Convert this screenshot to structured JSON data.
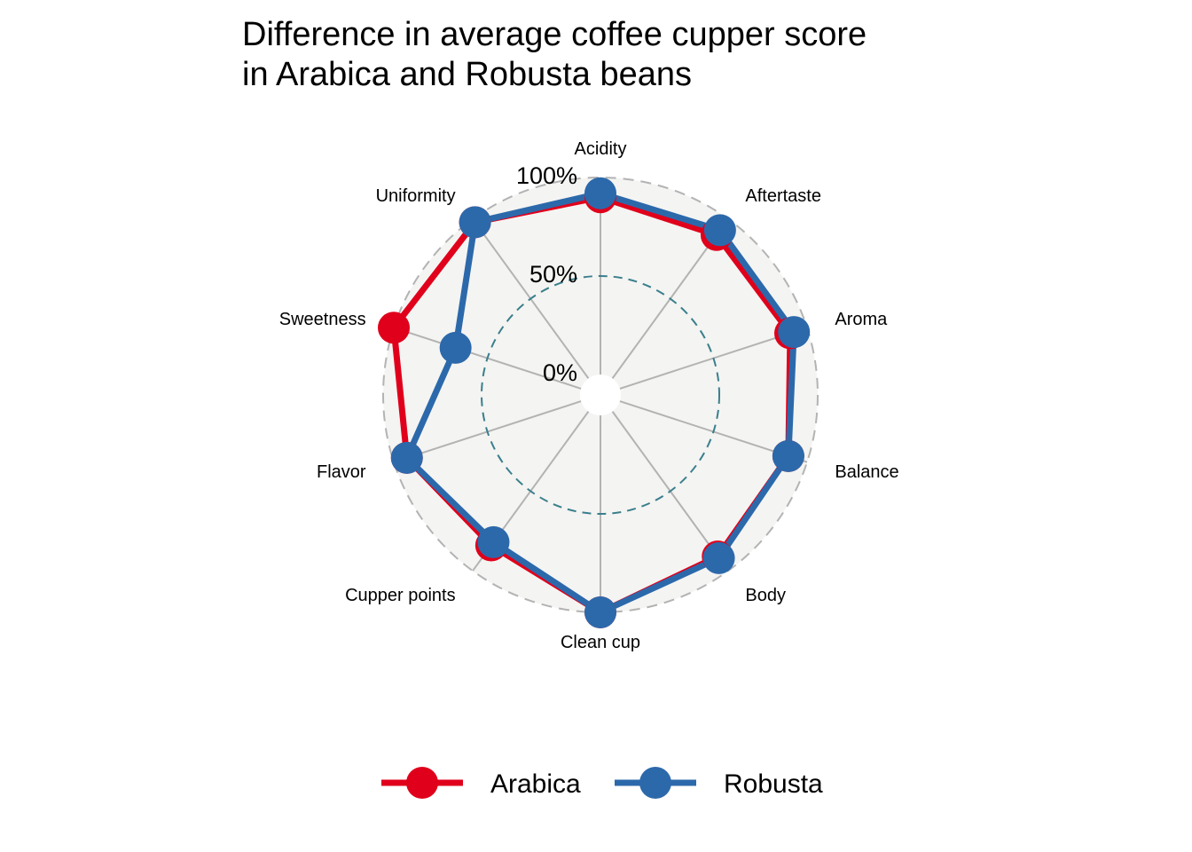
{
  "chart_data": {
    "type": "radar",
    "title": [
      "Difference in average coffee cupper score",
      "in Arabica and Robusta beans"
    ],
    "axes": [
      "Acidity",
      "Aftertaste",
      "Aroma",
      "Balance",
      "Body",
      "Clean cup",
      "Cupper points",
      "Flavor",
      "Sweetness",
      "Uniformity"
    ],
    "radial_ticks": [
      {
        "value": 0,
        "label": "0%"
      },
      {
        "value": 50,
        "label": "50%"
      },
      {
        "value": 100,
        "label": "100%"
      }
    ],
    "rlim": [
      0,
      100
    ],
    "series": [
      {
        "name": "Arabica",
        "color": "#e0001b",
        "values": [
          90,
          90,
          91,
          90,
          91,
          100,
          84,
          93,
          100,
          98
        ]
      },
      {
        "name": "Robusta",
        "color": "#2c69ab",
        "values": [
          92,
          93,
          93,
          90,
          92,
          100,
          82,
          93,
          67,
          98
        ]
      }
    ],
    "legend_position": "bottom",
    "colors": {
      "panel_bg": "#f4f4f2",
      "grid": "#b3b3b3",
      "mid_circle": "#3a7f8c"
    }
  }
}
